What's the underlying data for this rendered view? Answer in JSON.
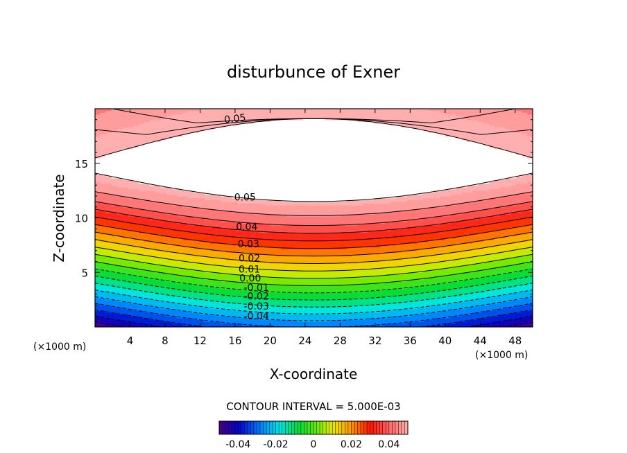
{
  "chart_data": {
    "type": "contour",
    "title": "disturbunce of Exner",
    "xlabel": "X-coordinate",
    "ylabel": "Z-coordinate",
    "x_unit_left": "(×1000 m)",
    "x_unit_right": "(×1000 m)",
    "xlim": [
      0,
      50
    ],
    "ylim": [
      0,
      20
    ],
    "xticks": [
      4,
      8,
      12,
      16,
      20,
      24,
      28,
      32,
      36,
      40,
      44,
      48
    ],
    "yticks": [
      5,
      10,
      15
    ],
    "contour_interval_label": "CONTOUR INTERVAL = 5.000E-03",
    "contour_interval": 0.005,
    "contour_labels": [
      "0.05",
      "0.05",
      "0.04",
      "0.03",
      "0.02",
      "0.01",
      "0.00",
      "-0.01",
      "-0.02",
      "-0.03",
      "-0.04"
    ],
    "colorbar": {
      "range": [
        -0.05,
        0.05
      ],
      "ticks": [
        "-0.04",
        "-0.02",
        "0",
        "0.02",
        "0.04"
      ]
    },
    "blank_region_note": "",
    "value_range": [
      -0.05,
      0.055
    ]
  }
}
